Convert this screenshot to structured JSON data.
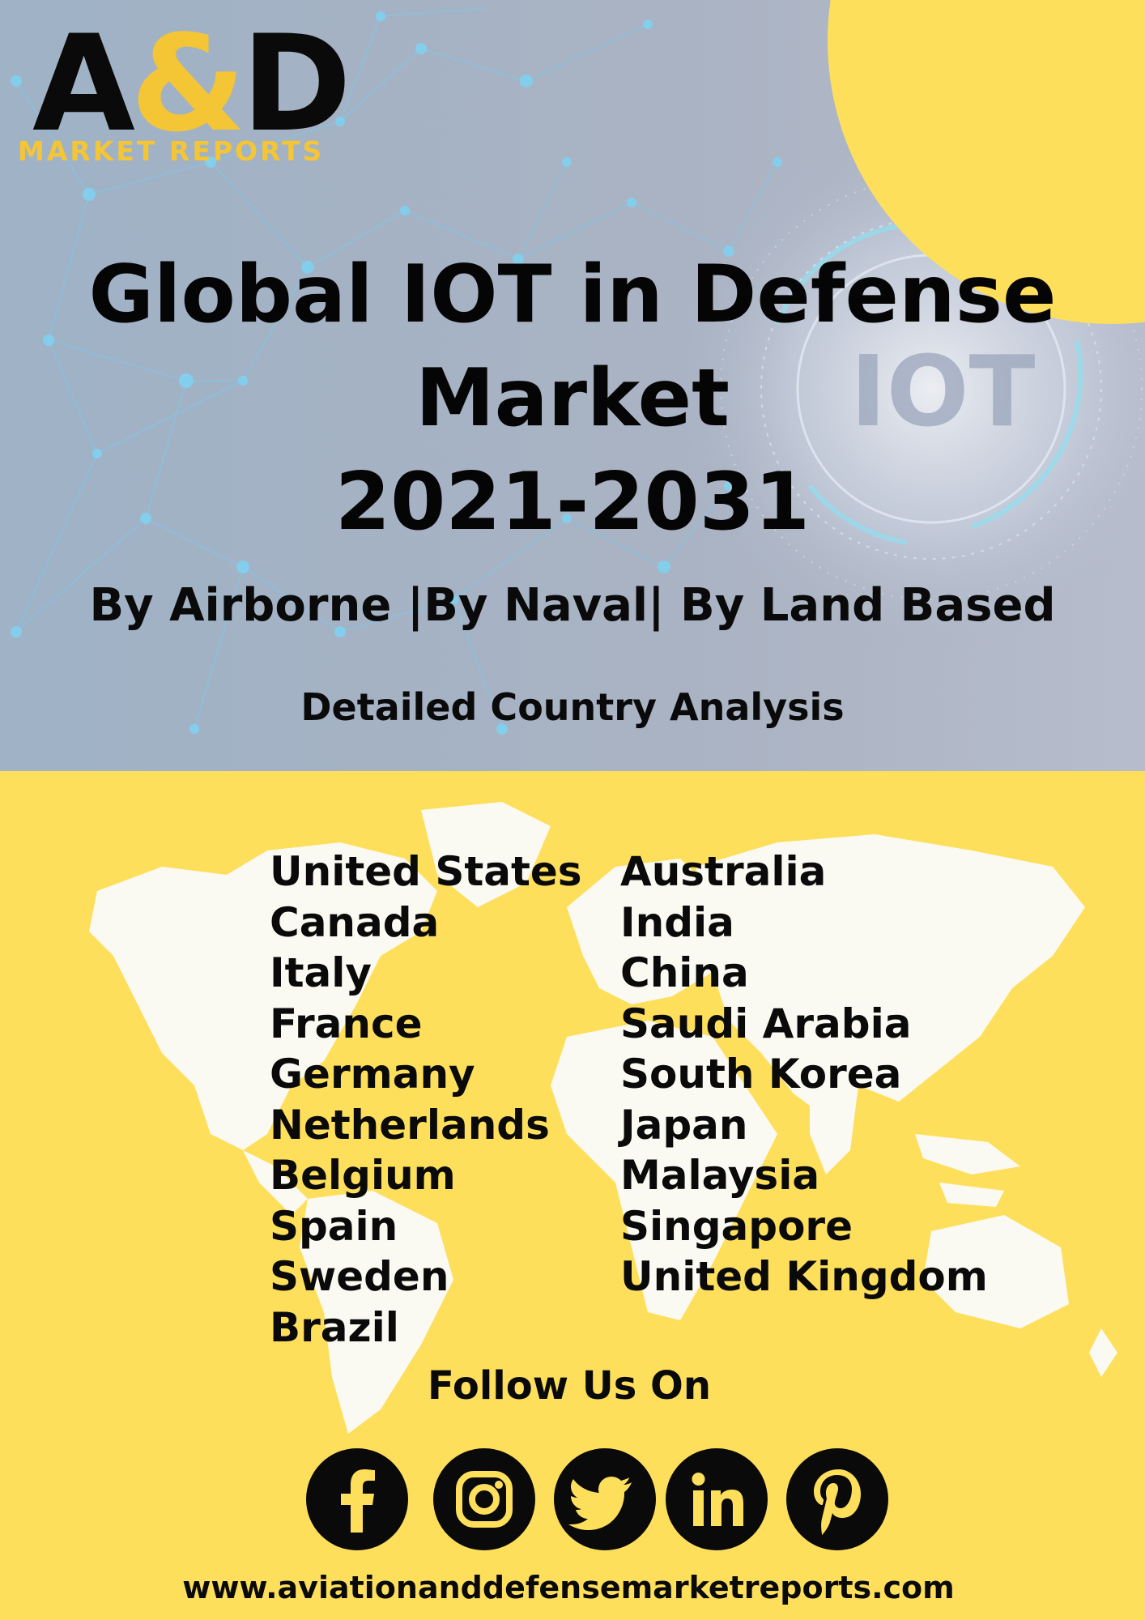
{
  "logo": {
    "letters_left": "A",
    "ampersand": "&",
    "letters_right": "D",
    "subtitle": "MARKET REPORTS"
  },
  "hero": {
    "title_line1": "Global IOT in Defense",
    "title_line2": "Market",
    "title_line3": "2021-2031",
    "segments": "By Airborne |By Naval| By Land Based",
    "analysis": "Detailed Country Analysis",
    "background_graphic_text": "IOT"
  },
  "countries_left": [
    "United States",
    "Canada",
    "Italy",
    "France",
    "Germany",
    "Netherlands",
    "Belgium",
    "Spain",
    "Sweden",
    "Brazil"
  ],
  "countries_right": [
    "Australia",
    "India",
    "China",
    "Saudi Arabia",
    "South Korea",
    "Japan",
    "Malaysia",
    "Singapore",
    "United Kingdom"
  ],
  "follow": "Follow Us On",
  "social_icons": [
    "facebook-icon",
    "instagram-icon",
    "twitter-icon",
    "linkedin-icon",
    "pinterest-icon"
  ],
  "url": "www.aviationanddefensemarketreports.com",
  "colors": {
    "accent_yellow": "#fedf5c",
    "logo_yellow": "#f4c534",
    "text_black": "#0a0a0a",
    "hero_gray": "#a4afc0"
  }
}
